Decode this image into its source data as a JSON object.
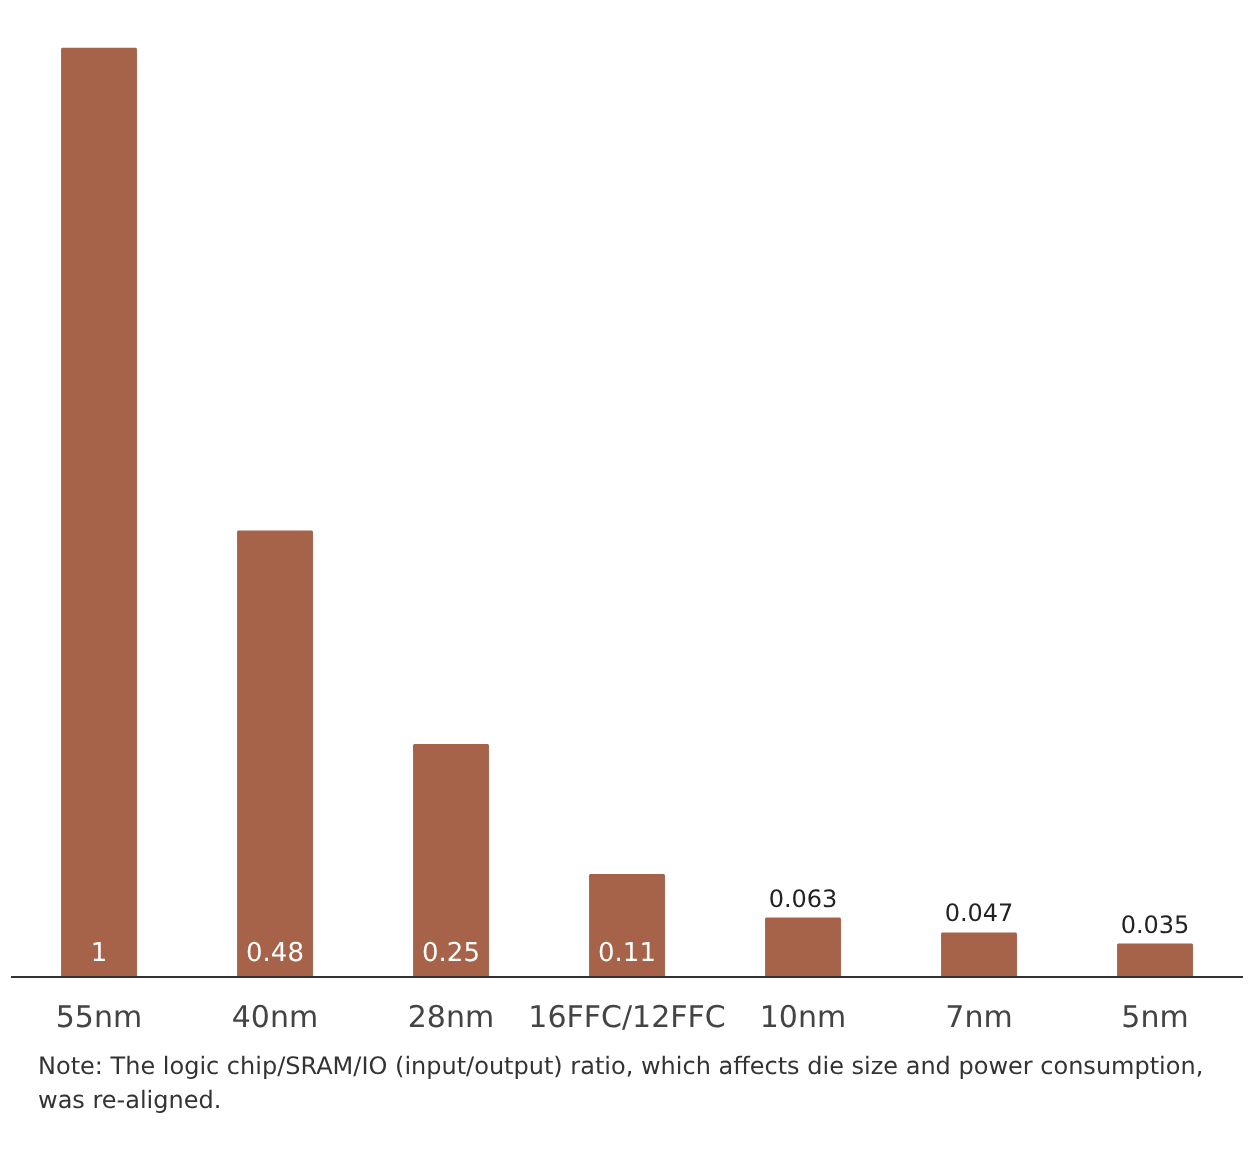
{
  "chart_data": {
    "type": "bar",
    "categories": [
      "55nm",
      "40nm",
      "28nm",
      "16FFC/12FFC",
      "10nm",
      "7nm",
      "5nm"
    ],
    "values": [
      1,
      0.48,
      0.25,
      0.11,
      0.063,
      0.047,
      0.035
    ],
    "color": "#a6634a",
    "data_labels": true,
    "annotations": [
      "Note: The logic chip/SRAM/IO (input/output) ratio, which affects die size and power consumption, was re-aligned."
    ]
  }
}
